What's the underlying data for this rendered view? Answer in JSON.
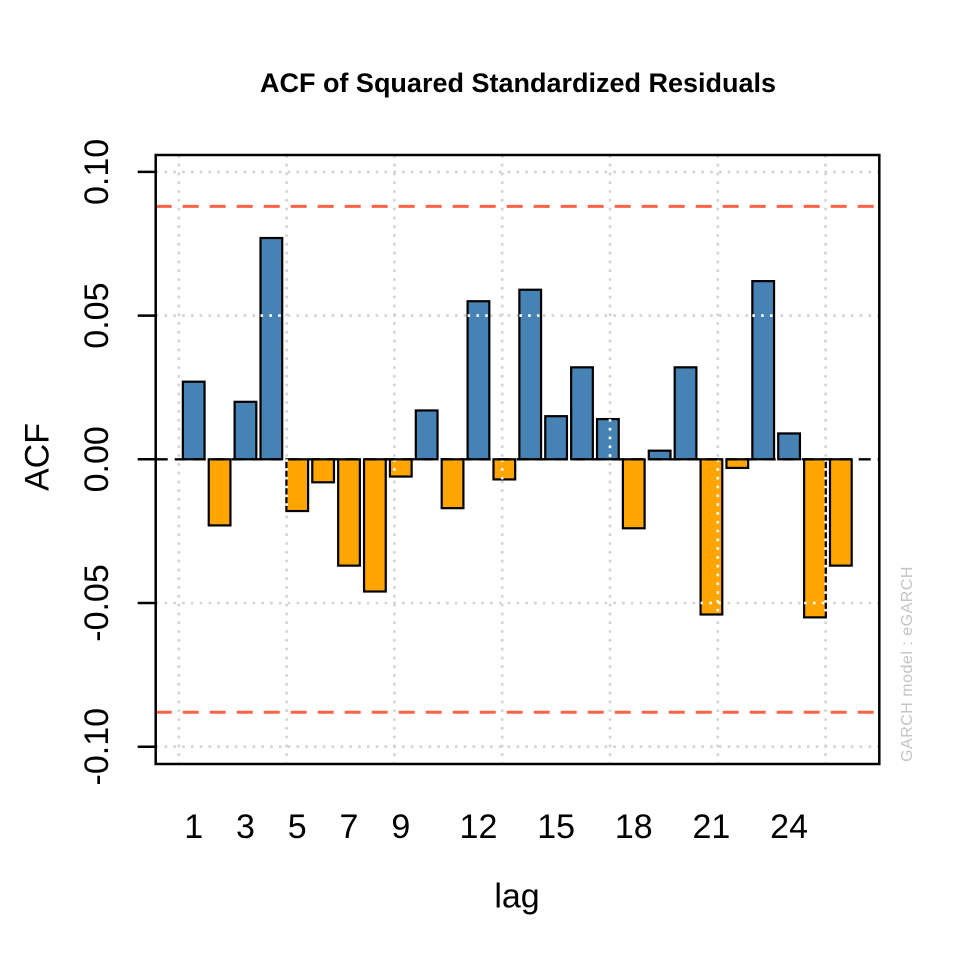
{
  "title": {
    "text": "ACF of Squared Standardized Residuals"
  },
  "watermark": {
    "text": "GARCH model :  eGARCH"
  },
  "chart_data": {
    "type": "bar",
    "title": "ACF of Squared Standardized Residuals",
    "xlabel": "lag",
    "ylabel": "ACF",
    "x": [
      1,
      2,
      3,
      4,
      5,
      6,
      7,
      8,
      9,
      10,
      11,
      12,
      13,
      14,
      15,
      16,
      17,
      18,
      19,
      20,
      21,
      22,
      23,
      24,
      25,
      26
    ],
    "values": [
      0.027,
      -0.023,
      0.02,
      0.077,
      -0.018,
      -0.008,
      -0.037,
      -0.046,
      -0.006,
      0.017,
      -0.017,
      0.055,
      -0.007,
      0.059,
      0.015,
      0.032,
      0.014,
      -0.024,
      0.003,
      0.032,
      -0.054,
      -0.003,
      0.062,
      0.009,
      -0.055,
      -0.037
    ],
    "x_tick_labels": [
      "1",
      "3",
      "5",
      "7",
      "9",
      "12",
      "15",
      "18",
      "21",
      "24"
    ],
    "x_tick_lags": [
      1,
      3,
      5,
      7,
      9,
      12,
      15,
      18,
      21,
      24
    ],
    "y_ticks": [
      0.1,
      0.05,
      0.0,
      -0.05,
      -0.1
    ],
    "y_tick_labels": [
      "0.10",
      "0.05",
      "0.00",
      "-0.05",
      "-0.10"
    ],
    "ylim": [
      -0.106,
      0.106
    ],
    "confidence_bands": [
      0.088,
      -0.088
    ],
    "zero_line": 0,
    "grid": true,
    "legend": "none",
    "colors": {
      "positive_bar": "#4682B4",
      "negative_bar": "#FFA500",
      "bar_border": "#000000",
      "confidence_line": "#FF6347",
      "grid_line": "#D3D3D3",
      "grid_over_bar": "#FFFFFF",
      "zero_line": "#000000",
      "axis": "#000000",
      "text": "#000000",
      "watermark": "#C4C4C4",
      "background": "#FFFFFF"
    }
  }
}
